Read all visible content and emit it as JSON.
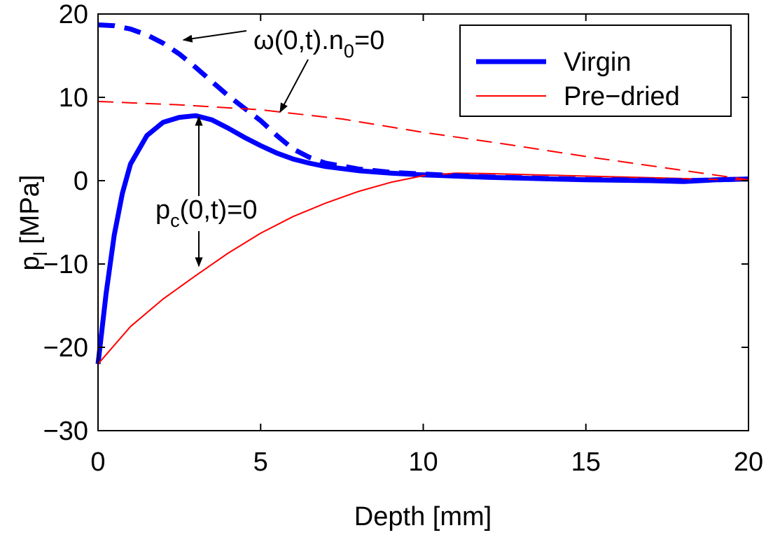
{
  "chart_data": {
    "type": "line",
    "xlabel": "Depth [mm]",
    "ylabel_main": "p",
    "ylabel_sub": "l",
    "ylabel_rest": " [MPa]",
    "xlim": [
      0,
      20
    ],
    "ylim": [
      -30,
      20
    ],
    "xticks": [
      0,
      5,
      10,
      15,
      20
    ],
    "yticks": [
      -30,
      -20,
      -10,
      0,
      10,
      20
    ],
    "xtick_labels": [
      "0",
      "5",
      "10",
      "15",
      "20"
    ],
    "ytick_labels": [
      "−30",
      "−20",
      "−10",
      "0",
      "10",
      "20"
    ],
    "grid": false,
    "legend_position": "top-right",
    "series": [
      {
        "name": "Virgin",
        "key": "virgin_solid",
        "color": "#0000ff",
        "style": "solid",
        "weight": "thick",
        "in_legend": true,
        "x": [
          0,
          0.25,
          0.5,
          0.75,
          1,
          1.5,
          2,
          2.5,
          3,
          3.5,
          4,
          4.5,
          5,
          5.5,
          6,
          6.5,
          7,
          8,
          9,
          10,
          11,
          12,
          13,
          14,
          15,
          16,
          17,
          18,
          19,
          20
        ],
        "y": [
          -22,
          -13.5,
          -6.5,
          -1.5,
          2,
          5.4,
          7,
          7.6,
          7.8,
          7.3,
          6.3,
          5.2,
          4.2,
          3.3,
          2.6,
          2.1,
          1.7,
          1.2,
          0.9,
          0.7,
          0.55,
          0.4,
          0.3,
          0.2,
          0.1,
          0.05,
          0,
          -0.1,
          0.1,
          0.2
        ]
      },
      {
        "name": "Pre−dried",
        "key": "predried_solid",
        "color": "#ff0000",
        "style": "solid",
        "weight": "thin",
        "in_legend": true,
        "x": [
          0,
          1,
          2,
          3,
          4,
          5,
          6,
          7,
          8,
          9,
          10,
          11,
          12,
          13,
          14,
          15,
          16,
          17,
          18,
          19,
          20
        ],
        "y": [
          -22,
          -17.5,
          -14.2,
          -11.4,
          -8.7,
          -6.3,
          -4.3,
          -2.7,
          -1.3,
          -0.2,
          0.6,
          0.9,
          0.85,
          0.75,
          0.65,
          0.55,
          0.45,
          0.35,
          0.25,
          0.15,
          0.1
        ]
      },
      {
        "name": "",
        "key": "virgin_dashed",
        "color": "#0000ff",
        "style": "dashed",
        "weight": "thick",
        "in_legend": false,
        "x": [
          0,
          0.5,
          1,
          1.5,
          2,
          2.5,
          3,
          3.5,
          4,
          4.5,
          5,
          5.5,
          6,
          6.5,
          7,
          8,
          9,
          10,
          11,
          12,
          13,
          14,
          15,
          16,
          17,
          18,
          19,
          20
        ],
        "y": [
          18.7,
          18.6,
          18.2,
          17.5,
          16.5,
          15.2,
          13.6,
          11.9,
          10.2,
          8.7,
          7.2,
          5.4,
          3.8,
          2.8,
          2.1,
          1.4,
          1.0,
          0.8,
          0.6,
          0.45,
          0.35,
          0.25,
          0.15,
          0.1,
          0.05,
          0,
          0.1,
          0.2
        ]
      },
      {
        "name": "",
        "key": "predried_dashed",
        "color": "#ff0000",
        "style": "dashed",
        "weight": "thin",
        "in_legend": false,
        "x": [
          0,
          2.5,
          5,
          7.5,
          10,
          12.5,
          15,
          17.5,
          20
        ],
        "y": [
          9.5,
          9.1,
          8.5,
          7.4,
          5.8,
          4.4,
          2.9,
          1.5,
          0.1
        ]
      }
    ],
    "annotations": [
      {
        "key": "omega",
        "main": "ω(0,t).n",
        "sub": "0",
        "tail": "=0"
      },
      {
        "key": "pc",
        "main": "p",
        "sub": "c",
        "tail": "(0,t)=0"
      }
    ]
  }
}
